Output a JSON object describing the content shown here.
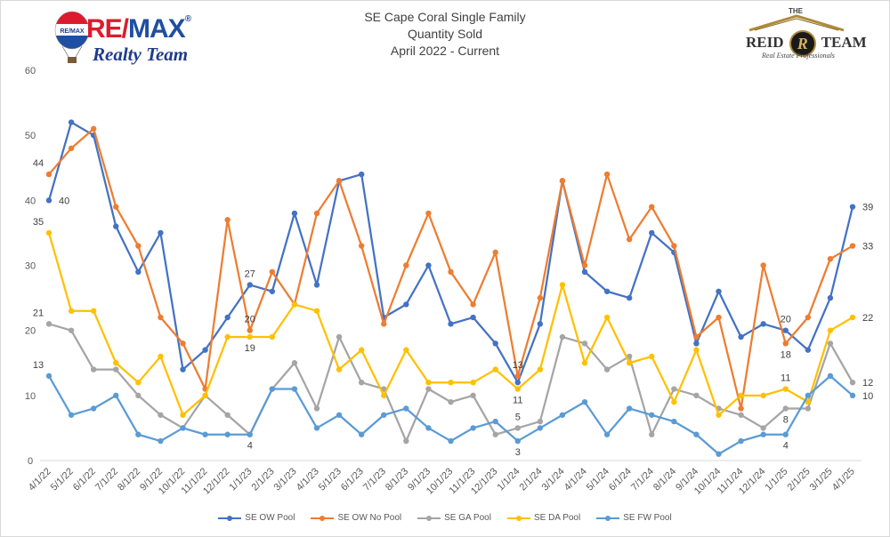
{
  "logos": {
    "remax": {
      "brand": "RE/MAX",
      "brand_re": "RE/",
      "brand_max": "MAX",
      "reg": "®",
      "sub": "Realty Team",
      "balloon_text": "RE/MAX"
    },
    "reid": {
      "the": "THE",
      "name_left": "REID",
      "name_right": "TEAM",
      "monogram": "R",
      "tagline": "Real Estate Professionals"
    }
  },
  "colors": {
    "SE OW Pool": "#4472c4",
    "SE OW No Pool": "#ed7d31",
    "SE GA Pool": "#a5a5a5",
    "SE DA Pool": "#ffc000",
    "SE FW Pool": "#5b9bd5",
    "gridline": "#d9d9d9"
  },
  "chart_data": {
    "type": "line",
    "title_lines": [
      "SE Cape Coral Single Family",
      "Quantity Sold",
      "April 2022 - Current"
    ],
    "xlabel": "",
    "ylabel": "",
    "ylim": [
      0,
      60
    ],
    "yticks": [
      0,
      10,
      20,
      30,
      40,
      50,
      60
    ],
    "grid": false,
    "legend_position": "bottom",
    "x": [
      "4/1/22",
      "5/1/22",
      "6/1/22",
      "7/1/22",
      "8/1/22",
      "9/1/22",
      "10/1/22",
      "11/1/22",
      "12/1/22",
      "1/1/23",
      "2/1/23",
      "3/1/23",
      "4/1/23",
      "5/1/23",
      "6/1/23",
      "7/1/23",
      "8/1/23",
      "9/1/23",
      "10/1/23",
      "11/1/23",
      "12/1/23",
      "1/1/24",
      "2/1/24",
      "3/1/24",
      "4/1/24",
      "5/1/24",
      "6/1/24",
      "7/1/24",
      "8/1/24",
      "9/1/24",
      "10/1/24",
      "11/1/24",
      "12/1/24",
      "1/1/25",
      "2/1/25",
      "3/1/25",
      "4/1/25"
    ],
    "series": [
      {
        "name": "SE OW Pool",
        "values": [
          40,
          52,
          50,
          36,
          29,
          35,
          14,
          17,
          22,
          27,
          26,
          38,
          27,
          43,
          44,
          22,
          24,
          30,
          21,
          22,
          18,
          12,
          21,
          43,
          29,
          26,
          25,
          35,
          32,
          18,
          26,
          19,
          21,
          20,
          17,
          25,
          39
        ]
      },
      {
        "name": "SE OW No Pool",
        "values": [
          44,
          48,
          51,
          39,
          33,
          22,
          18,
          11,
          37,
          20,
          29,
          24,
          38,
          43,
          33,
          21,
          30,
          38,
          29,
          24,
          32,
          13,
          25,
          43,
          30,
          44,
          34,
          39,
          33,
          19,
          22,
          8,
          30,
          18,
          22,
          31,
          33
        ]
      },
      {
        "name": "SE GA Pool",
        "values": [
          21,
          20,
          14,
          14,
          10,
          7,
          5,
          10,
          7,
          4,
          11,
          15,
          8,
          19,
          12,
          11,
          3,
          11,
          9,
          10,
          4,
          5,
          6,
          19,
          18,
          14,
          16,
          4,
          11,
          10,
          8,
          7,
          5,
          8,
          8,
          18,
          12
        ]
      },
      {
        "name": "SE DA Pool",
        "values": [
          35,
          23,
          23,
          15,
          12,
          16,
          7,
          10,
          19,
          19,
          19,
          24,
          23,
          14,
          17,
          10,
          17,
          12,
          12,
          12,
          14,
          11,
          14,
          27,
          15,
          22,
          15,
          16,
          9,
          17,
          7,
          10,
          10,
          11,
          9,
          20,
          22
        ]
      },
      {
        "name": "SE FW Pool",
        "values": [
          13,
          7,
          8,
          10,
          4,
          3,
          5,
          4,
          4,
          4,
          11,
          11,
          5,
          7,
          4,
          7,
          8,
          5,
          3,
          5,
          6,
          3,
          5,
          7,
          9,
          4,
          8,
          7,
          6,
          4,
          1,
          3,
          4,
          4,
          10,
          13,
          10
        ]
      }
    ],
    "data_labels": [
      {
        "series": "SE OW No Pool",
        "x": "4/1/22",
        "text": "44",
        "pos": "above"
      },
      {
        "series": "SE OW Pool",
        "x": "4/1/22",
        "text": "40",
        "pos": "right"
      },
      {
        "series": "SE DA Pool",
        "x": "4/1/22",
        "text": "35",
        "pos": "above"
      },
      {
        "series": "SE GA Pool",
        "x": "4/1/22",
        "text": "21",
        "pos": "above"
      },
      {
        "series": "SE FW Pool",
        "x": "4/1/22",
        "text": "13",
        "pos": "above"
      },
      {
        "series": "SE OW Pool",
        "x": "1/1/23",
        "text": "27",
        "pos": "above"
      },
      {
        "series": "SE OW No Pool",
        "x": "1/1/23",
        "text": "20",
        "pos": "above"
      },
      {
        "series": "SE DA Pool",
        "x": "1/1/23",
        "text": "19",
        "pos": "below"
      },
      {
        "series": "SE GA Pool",
        "x": "1/1/23",
        "text": "4",
        "pos": "below"
      },
      {
        "series": "SE OW No Pool",
        "x": "1/1/24",
        "text": "13",
        "pos": "above"
      },
      {
        "series": "SE DA Pool",
        "x": "1/1/24",
        "text": "11",
        "pos": "below"
      },
      {
        "series": "SE GA Pool",
        "x": "1/1/24",
        "text": "5",
        "pos": "above"
      },
      {
        "series": "SE FW Pool",
        "x": "1/1/24",
        "text": "3",
        "pos": "below"
      },
      {
        "series": "SE OW Pool",
        "x": "1/1/25",
        "text": "20",
        "pos": "above"
      },
      {
        "series": "SE OW No Pool",
        "x": "1/1/25",
        "text": "18",
        "pos": "below"
      },
      {
        "series": "SE DA Pool",
        "x": "1/1/25",
        "text": "11",
        "pos": "above"
      },
      {
        "series": "SE GA Pool",
        "x": "1/1/25",
        "text": "8",
        "pos": "below"
      },
      {
        "series": "SE FW Pool",
        "x": "1/1/25",
        "text": "4",
        "pos": "below"
      },
      {
        "series": "SE OW Pool",
        "x": "4/1/25",
        "text": "39",
        "pos": "right"
      },
      {
        "series": "SE OW No Pool",
        "x": "4/1/25",
        "text": "33",
        "pos": "right"
      },
      {
        "series": "SE DA Pool",
        "x": "4/1/25",
        "text": "22",
        "pos": "right"
      },
      {
        "series": "SE GA Pool",
        "x": "4/1/25",
        "text": "12",
        "pos": "right"
      },
      {
        "series": "SE FW Pool",
        "x": "4/1/25",
        "text": "10",
        "pos": "right"
      }
    ]
  }
}
